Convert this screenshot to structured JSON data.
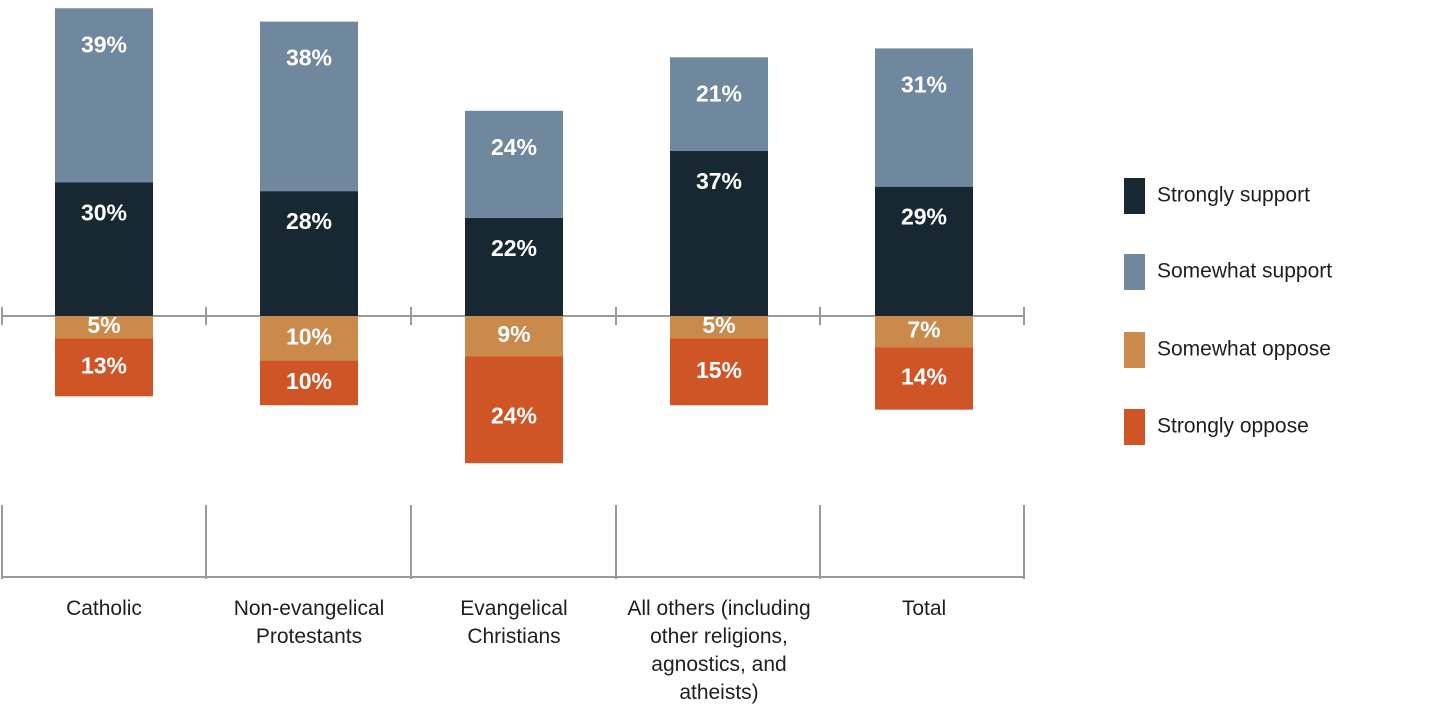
{
  "chart_data": {
    "type": "bar",
    "stacked": true,
    "diverging": true,
    "categories": [
      [
        "Catholic"
      ],
      [
        "Non-evangelical",
        "Protestants"
      ],
      [
        "Evangelical",
        "Christians"
      ],
      [
        "All others (including",
        "other religions,",
        "agnostics, and",
        "atheists)"
      ],
      [
        "Total"
      ]
    ],
    "series": [
      {
        "name": "Strongly support",
        "color": "#172833",
        "direction": "up",
        "values": [
          30,
          28,
          22,
          37,
          29
        ],
        "labels": [
          "30%",
          "28%",
          "22%",
          "37%",
          "29%"
        ]
      },
      {
        "name": "Somewhat support",
        "color": "#6f889e",
        "direction": "up",
        "values": [
          39,
          38,
          24,
          21,
          31
        ],
        "labels": [
          "39%",
          "38%",
          "24%",
          "21%",
          "31%"
        ]
      },
      {
        "name": "Somewhat oppose",
        "color": "#c98a4b",
        "direction": "down",
        "values": [
          5,
          10,
          9,
          5,
          7
        ],
        "labels": [
          "5%",
          "10%",
          "9%",
          "5%",
          "7%"
        ]
      },
      {
        "name": "Strongly oppose",
        "color": "#d05526",
        "direction": "down",
        "values": [
          13,
          10,
          24,
          15,
          14
        ],
        "labels": [
          "13%",
          "10%",
          "24%",
          "15%",
          "14%"
        ]
      }
    ],
    "legend_position": "right",
    "unit": "%"
  }
}
